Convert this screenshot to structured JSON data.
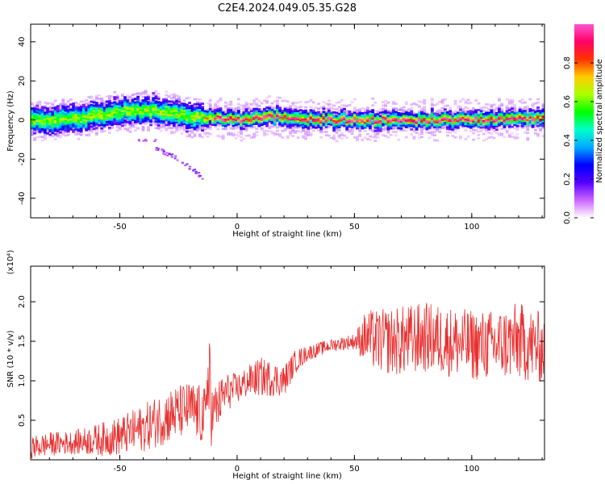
{
  "title": "C2E4.2024.049.05.35.G28",
  "colors": {
    "snr_line": "#e83030",
    "axes": "#000000"
  },
  "chart_data": [
    {
      "type": "heatmap",
      "xlabel": "Height of straight line (km)",
      "ylabel": "Frequency (Hz)",
      "xlim": [
        -88,
        131
      ],
      "ylim": [
        -50,
        49
      ],
      "xticks": [
        "-50",
        "0",
        "50",
        "100"
      ],
      "yticks": [
        "-40",
        "-20",
        "0",
        "20",
        "40"
      ],
      "grid": false,
      "colorbar": {
        "label": "Normalized spectral amplitude",
        "range": [
          0,
          1
        ],
        "ticks": [
          "0.0",
          "0.2",
          "0.4",
          "0.6",
          "0.8"
        ],
        "colormap": [
          "#ffffff",
          "#cc66ff",
          "#5500ff",
          "#0000ff",
          "#00aaff",
          "#00ffcc",
          "#00ff00",
          "#aaff00",
          "#ffcc00",
          "#ff3300",
          "#ff0066",
          "#ff55cc"
        ]
      },
      "band_center": [
        [
          -88,
          0
        ],
        [
          -80,
          -1.5
        ],
        [
          -70,
          0.5
        ],
        [
          -60,
          2
        ],
        [
          -50,
          4
        ],
        [
          -40,
          5
        ],
        [
          -35,
          4.5
        ],
        [
          -25,
          2.5
        ],
        [
          -15,
          1
        ],
        [
          -5,
          0.5
        ],
        [
          0,
          0
        ],
        [
          10,
          1.5
        ],
        [
          20,
          1.5
        ],
        [
          30,
          0
        ],
        [
          50,
          0
        ],
        [
          70,
          0
        ],
        [
          90,
          0
        ],
        [
          110,
          0
        ],
        [
          131,
          1
        ]
      ],
      "band_halfwidth_hz": 5,
      "faint_branch": [
        [
          -35,
          -14
        ],
        [
          -25,
          -20
        ],
        [
          -15,
          -29
        ]
      ]
    },
    {
      "type": "line",
      "xlabel": "Height of straight line (km)",
      "ylabel": "SNR (10 * v/v)",
      "y_multiplier": "(x10⁴)",
      "xlim": [
        -88,
        131
      ],
      "ylim": [
        0.0,
        2.45
      ],
      "xticks": [
        "-50",
        "0",
        "50",
        "100"
      ],
      "yticks": [
        "0.5",
        "1.0",
        "1.5",
        "2.0"
      ],
      "grid": false,
      "series": [
        {
          "x": [
            -88,
            -80,
            -70,
            -60,
            -50,
            -40,
            -30,
            -20,
            -12,
            -5,
            0,
            5,
            10,
            20,
            25,
            30,
            40,
            50,
            55,
            60,
            70,
            80,
            90,
            100,
            110,
            120,
            131
          ],
          "values": [
            0.15,
            0.2,
            0.22,
            0.25,
            0.3,
            0.4,
            0.55,
            0.65,
            0.5,
            0.85,
            0.9,
            1.0,
            1.05,
            1.0,
            1.25,
            1.35,
            1.45,
            1.5,
            1.55,
            1.5,
            1.5,
            1.55,
            1.5,
            1.45,
            1.45,
            1.5,
            1.4
          ],
          "spread": [
            0.15,
            0.15,
            0.15,
            0.2,
            0.25,
            0.3,
            0.35,
            0.35,
            0.4,
            0.25,
            0.2,
            0.2,
            0.25,
            0.2,
            0.15,
            0.1,
            0.08,
            0.1,
            0.35,
            0.4,
            0.45,
            0.45,
            0.45,
            0.45,
            0.45,
            0.5,
            0.45
          ]
        }
      ]
    }
  ]
}
